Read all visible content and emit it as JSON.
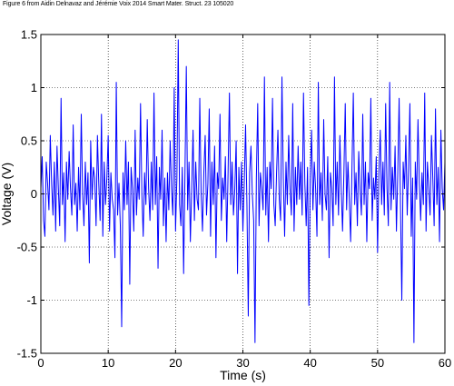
{
  "caption": "Figure 6 from Aidin Delnavaz and Jérémie Voix 2014 Smart Mater. Struct. 23 105020",
  "chart_data": {
    "type": "line",
    "title": "",
    "xlabel": "Time (s)",
    "ylabel": "Voltage (V)",
    "xlim": [
      0,
      60
    ],
    "ylim": [
      -1.5,
      1.5
    ],
    "xticks": [
      0,
      10,
      20,
      30,
      40,
      50,
      60
    ],
    "yticks": [
      -1.5,
      -1,
      -0.5,
      0,
      0.5,
      1,
      1.5
    ],
    "xtick_labels": [
      "0",
      "10",
      "20",
      "30",
      "40",
      "50",
      "60"
    ],
    "ytick_labels": [
      "-1.5",
      "-1",
      "-0.5",
      "0",
      "0.5",
      "1",
      "1.5"
    ],
    "grid": true,
    "grid_style": "dotted",
    "line_color": "#0000ff",
    "series": [
      {
        "x": [
          0.0,
          0.2,
          0.4,
          0.6,
          0.8,
          1.0,
          1.2,
          1.4,
          1.6,
          1.8,
          2.0,
          2.2,
          2.4,
          2.6,
          2.8,
          3.0,
          3.2,
          3.4,
          3.6,
          3.8,
          4.0,
          4.2,
          4.4,
          4.6,
          4.8,
          5.0,
          5.2,
          5.4,
          5.6,
          5.8,
          6.0,
          6.2,
          6.4,
          6.6,
          6.8,
          7.0,
          7.2,
          7.4,
          7.6,
          7.8,
          8.0,
          8.2,
          8.4,
          8.6,
          8.8,
          9.0,
          9.2,
          9.4,
          9.6,
          9.8,
          10.0,
          10.2,
          10.4,
          10.6,
          10.8,
          11.0,
          11.2,
          11.4,
          11.6,
          11.8,
          12.0,
          12.2,
          12.4,
          12.6,
          12.8,
          13.0,
          13.2,
          13.4,
          13.6,
          13.8,
          14.0,
          14.2,
          14.4,
          14.6,
          14.8,
          15.0,
          15.2,
          15.4,
          15.6,
          15.8,
          16.0,
          16.2,
          16.4,
          16.6,
          16.8,
          17.0,
          17.2,
          17.4,
          17.6,
          17.8,
          18.0,
          18.2,
          18.4,
          18.6,
          18.8,
          19.0,
          19.2,
          19.4,
          19.6,
          19.8,
          20.0,
          20.2,
          20.4,
          20.6,
          20.8,
          21.0,
          21.2,
          21.4,
          21.6,
          21.8,
          22.0,
          22.2,
          22.4,
          22.6,
          22.8,
          23.0,
          23.2,
          23.4,
          23.6,
          23.8,
          24.0,
          24.2,
          24.4,
          24.6,
          24.8,
          25.0,
          25.2,
          25.4,
          25.6,
          25.8,
          26.0,
          26.2,
          26.4,
          26.6,
          26.8,
          27.0,
          27.2,
          27.4,
          27.6,
          27.8,
          28.0,
          28.2,
          28.4,
          28.6,
          28.8,
          29.0,
          29.2,
          29.4,
          29.6,
          29.8,
          30.0,
          30.2,
          30.4,
          30.6,
          30.8,
          31.0,
          31.2,
          31.4,
          31.6,
          31.8,
          32.0,
          32.2,
          32.4,
          32.6,
          32.8,
          33.0,
          33.2,
          33.4,
          33.6,
          33.8,
          34.0,
          34.2,
          34.4,
          34.6,
          34.8,
          35.0,
          35.2,
          35.4,
          35.6,
          35.8,
          36.0,
          36.2,
          36.4,
          36.6,
          36.8,
          37.0,
          37.2,
          37.4,
          37.6,
          37.8,
          38.0,
          38.2,
          38.4,
          38.6,
          38.8,
          39.0,
          39.2,
          39.4,
          39.6,
          39.8,
          40.0,
          40.2,
          40.4,
          40.6,
          40.8,
          41.0,
          41.2,
          41.4,
          41.6,
          41.8,
          42.0,
          42.2,
          42.4,
          42.6,
          42.8,
          43.0,
          43.2,
          43.4,
          43.6,
          43.8,
          44.0,
          44.2,
          44.4,
          44.6,
          44.8,
          45.0,
          45.2,
          45.4,
          45.6,
          45.8,
          46.0,
          46.2,
          46.4,
          46.6,
          46.8,
          47.0,
          47.2,
          47.4,
          47.6,
          47.8,
          48.0,
          48.2,
          48.4,
          48.6,
          48.8,
          49.0,
          49.2,
          49.4,
          49.6,
          49.8,
          50.0,
          50.2,
          50.4,
          50.6,
          50.8,
          51.0,
          51.2,
          51.4,
          51.6,
          51.8,
          52.0,
          52.2,
          52.4,
          52.6,
          52.8,
          53.0,
          53.2,
          53.4,
          53.6,
          53.8,
          54.0,
          54.2,
          54.4,
          54.6,
          54.8,
          55.0,
          55.2,
          55.4,
          55.6,
          55.8,
          56.0,
          56.2,
          56.4,
          56.6,
          56.8,
          57.0,
          57.2,
          57.4,
          57.6,
          57.8,
          58.0,
          58.2,
          58.4,
          58.6,
          58.8,
          59.0,
          59.2,
          59.4,
          59.6,
          59.8,
          60.0
        ],
        "y": [
          0.05,
          0.35,
          -0.25,
          -0.4,
          0.3,
          0.1,
          -0.15,
          0.55,
          0.1,
          -0.2,
          0.3,
          -0.35,
          0.45,
          0.05,
          -0.3,
          0.9,
          -0.1,
          0.2,
          -0.45,
          0.3,
          -0.05,
          0.4,
          0.05,
          -0.2,
          0.65,
          -0.1,
          0.1,
          -0.35,
          0.25,
          -0.15,
          0.75,
          0.0,
          -0.3,
          0.3,
          -0.1,
          0.2,
          -0.65,
          0.5,
          -0.05,
          0.25,
          0.15,
          -0.3,
          0.55,
          0.1,
          -0.25,
          0.75,
          -0.4,
          0.3,
          -0.1,
          0.15,
          0.55,
          -0.35,
          0.2,
          -0.05,
          -0.15,
          -0.6,
          1.05,
          -0.2,
          0.1,
          -0.3,
          -1.25,
          0.2,
          -0.15,
          0.5,
          -0.1,
          0.3,
          -0.85,
          0.25,
          0.05,
          -0.35,
          0.6,
          -0.2,
          0.15,
          -0.05,
          0.85,
          0.0,
          -0.4,
          0.2,
          -0.1,
          0.7,
          0.05,
          -0.25,
          0.3,
          -0.15,
          0.95,
          -0.1,
          0.35,
          -0.7,
          0.25,
          -0.05,
          0.6,
          -0.3,
          0.15,
          -0.45,
          0.2,
          -0.15,
          0.5,
          0.05,
          -0.2,
          1.0,
          -0.35,
          0.15,
          1.45,
          -0.1,
          -0.3,
          0.25,
          -0.75,
          0.2,
          1.2,
          -0.15,
          0.3,
          -0.45,
          0.05,
          0.6,
          -0.25,
          0.3,
          -0.05,
          -0.15,
          0.9,
          0.0,
          -0.35,
          0.2,
          0.55,
          -0.2,
          0.1,
          0.8,
          -0.4,
          0.3,
          -0.1,
          0.45,
          -0.6,
          0.2,
          0.05,
          0.75,
          -0.25,
          0.15,
          -0.05,
          0.35,
          -0.45,
          0.2,
          0.95,
          -0.1,
          0.3,
          -0.2,
          0.05,
          0.5,
          -0.75,
          0.25,
          -0.15,
          0.3,
          -0.35,
          0.1,
          0.65,
          -0.1,
          -1.15,
          0.2,
          0.45,
          0.0,
          -0.25,
          -1.4,
          0.15,
          0.85,
          -0.3,
          0.2,
          0.05,
          -0.15,
          1.1,
          -0.2,
          0.25,
          -0.45,
          0.3,
          0.05,
          0.9,
          -0.1,
          -0.3,
          0.2,
          0.6,
          -0.05,
          -0.25,
          1.1,
          0.15,
          -0.4,
          0.3,
          -0.1,
          0.55,
          0.05,
          -0.2,
          0.85,
          -0.35,
          0.25,
          -0.1,
          0.45,
          -0.05,
          0.3,
          -0.2,
          0.95,
          0.1,
          -0.3,
          0.25,
          -1.05,
          0.15,
          0.6,
          -0.15,
          0.3,
          0.05,
          -0.4,
          1.05,
          -0.1,
          0.2,
          -0.25,
          0.7,
          0.0,
          -0.15,
          0.35,
          -0.6,
          0.2,
          0.05,
          -0.3,
          1.1,
          -0.1,
          0.3,
          -0.2,
          0.55,
          0.05,
          -0.35,
          0.2,
          0.85,
          -0.15,
          0.3,
          -0.05,
          -0.45,
          0.25,
          0.95,
          -0.1,
          0.2,
          -0.3,
          0.4,
          0.05,
          -0.2,
          0.75,
          -0.1,
          0.3,
          -0.45,
          0.2,
          0.05,
          0.9,
          -0.25,
          0.15,
          -0.05,
          0.35,
          -0.55,
          0.2,
          0.6,
          -0.1,
          0.3,
          -0.2,
          0.85,
          0.05,
          -0.3,
          1.05,
          -0.15,
          0.25,
          -0.05,
          0.45,
          -0.35,
          0.2,
          0.9,
          -0.1,
          -1.0,
          0.3,
          0.05,
          0.55,
          -0.2,
          0.25,
          0.85,
          -0.4,
          0.15,
          -1.4,
          0.3,
          -0.05,
          0.7,
          0.1,
          -0.25,
          0.2,
          -0.1,
          0.95,
          -0.35,
          0.3,
          0.05,
          -0.2,
          0.55,
          0.15,
          -0.3,
          0.8,
          -0.1,
          0.25,
          -0.45,
          0.6,
          0.05,
          -0.15,
          0.3
        ]
      }
    ]
  }
}
